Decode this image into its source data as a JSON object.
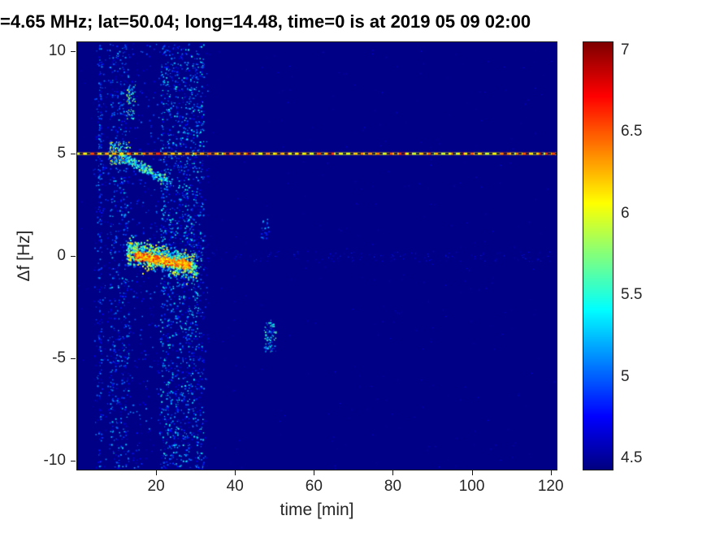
{
  "chart_data": {
    "type": "heatmap",
    "title": "=4.65 MHz;  lat=50.04; long=14.48, time=0 is at 2019 05 09 02:00",
    "xlabel": "time [min]",
    "ylabel": "Δf [Hz]",
    "xlim": [
      0,
      121.5
    ],
    "ylim": [
      -10.45,
      10.45
    ],
    "xticks": [
      20,
      40,
      60,
      80,
      100,
      120
    ],
    "yticks": [
      10,
      5,
      0,
      -5,
      -10
    ],
    "grid": false,
    "colormap": "jet",
    "background_value": 4.45,
    "colorbar": {
      "min": 4.43,
      "max": 7.05,
      "ticks": [
        7,
        6.5,
        6,
        5.5,
        5,
        4.5
      ],
      "position": "right"
    },
    "features": [
      {
        "kind": "cloud",
        "label": "noise band 4-33 min",
        "x": [
          4,
          33
        ],
        "y": [
          -10.4,
          10.4
        ],
        "count": 1100,
        "values": [
          4.55,
          5.15
        ],
        "sizes": [
          1,
          2
        ]
      },
      {
        "kind": "cloud",
        "label": "dense noise column 21-32 min",
        "x": [
          21,
          32
        ],
        "y": [
          -10.4,
          10.4
        ],
        "count": 1500,
        "values": [
          4.6,
          5.5
        ],
        "sizes": [
          1,
          2
        ]
      },
      {
        "kind": "cloud",
        "label": "noise column 8-13 min",
        "x": [
          8,
          13
        ],
        "y": [
          -10.4,
          10.4
        ],
        "count": 450,
        "values": [
          4.6,
          5.35
        ],
        "sizes": [
          1,
          2
        ]
      },
      {
        "kind": "cloud",
        "label": "speckle column 5.5 min",
        "x": [
          5.2,
          6.1
        ],
        "y": [
          -10.4,
          10.4
        ],
        "count": 160,
        "values": [
          4.6,
          5.2
        ],
        "sizes": [
          1,
          2
        ]
      },
      {
        "kind": "cloud",
        "label": "speckle spot 13 min +7.5 Hz",
        "x": [
          12.3,
          14.6
        ],
        "y": [
          6.7,
          8.4
        ],
        "count": 70,
        "values": [
          4.9,
          6.0
        ],
        "sizes": [
          1,
          2
        ]
      },
      {
        "kind": "cloud",
        "label": "cluster 49 min -4 Hz",
        "x": [
          47.3,
          50.2
        ],
        "y": [
          -4.7,
          -3.1
        ],
        "count": 80,
        "values": [
          4.8,
          5.7
        ],
        "sizes": [
          1,
          2
        ]
      },
      {
        "kind": "cloud",
        "label": "cluster 47-49 min +1.5 Hz",
        "x": [
          46.5,
          48.5
        ],
        "y": [
          0.8,
          1.9
        ],
        "count": 25,
        "values": [
          4.7,
          5.3
        ],
        "sizes": [
          1,
          2
        ]
      },
      {
        "kind": "cloud",
        "label": "sparse global speckle",
        "x": [
          0,
          121.5
        ],
        "y": [
          -10.4,
          10.4
        ],
        "count": 400,
        "values": [
          4.5,
          4.8
        ],
        "sizes": [
          1,
          1
        ]
      },
      {
        "kind": "cloud",
        "label": "faint residue along 0 Hz",
        "x": [
          30,
          120
        ],
        "y": [
          -0.25,
          0.25
        ],
        "count": 140,
        "values": [
          4.55,
          4.9
        ],
        "sizes": [
          1,
          1
        ]
      },
      {
        "kind": "cloud",
        "label": "bright cluster near carrier onset",
        "x": [
          8,
          13.5
        ],
        "y": [
          4.5,
          5.6
        ],
        "count": 150,
        "values": [
          5.0,
          6.3
        ],
        "sizes": [
          1,
          2
        ]
      },
      {
        "kind": "trace",
        "label": "main doppler trace fringe",
        "from": [
          12.5,
          0.3
        ],
        "to": [
          30,
          -0.5
        ],
        "sigma": 0.55,
        "count": 900,
        "values": [
          5.0,
          6.2
        ]
      },
      {
        "kind": "trace",
        "label": "main doppler trace core",
        "from": [
          14.5,
          0.05
        ],
        "to": [
          28.5,
          -0.4
        ],
        "sigma": 0.18,
        "count": 500,
        "values": [
          6.0,
          6.7
        ]
      },
      {
        "kind": "trace",
        "label": "descending trace from carrier",
        "from": [
          10.5,
          5.0
        ],
        "to": [
          22.5,
          3.7
        ],
        "sigma": 0.22,
        "count": 220,
        "values": [
          4.9,
          5.9
        ]
      },
      {
        "kind": "hline",
        "label": "persistent carrier line at +5 Hz",
        "y": 5.0,
        "values": [
          5.9,
          6.6
        ],
        "dashed_overlay": true
      }
    ]
  }
}
